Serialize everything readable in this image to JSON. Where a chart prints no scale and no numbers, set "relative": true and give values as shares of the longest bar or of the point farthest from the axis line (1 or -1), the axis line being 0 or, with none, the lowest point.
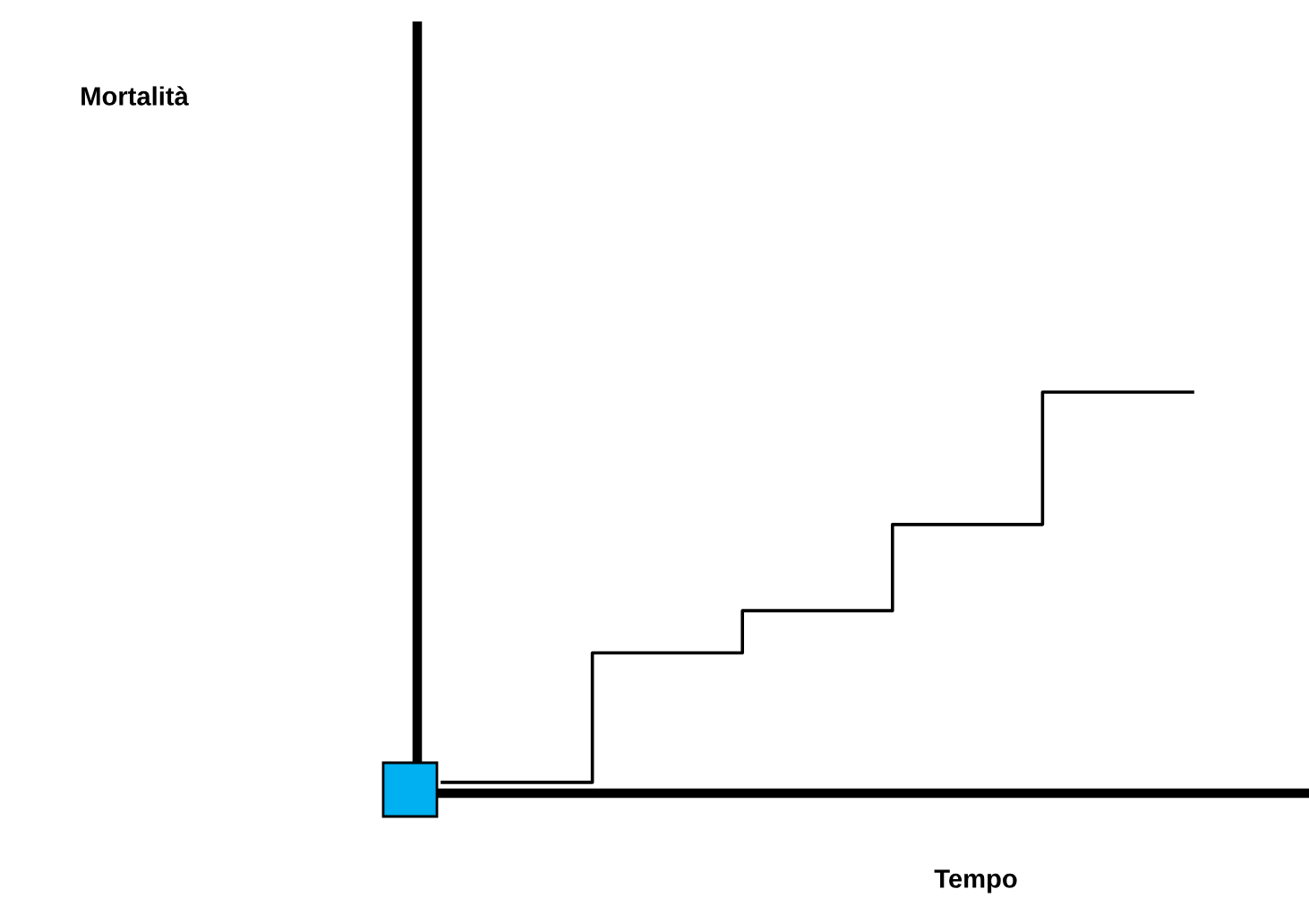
{
  "chart_data": {
    "type": "step",
    "relative": true,
    "xlabel": "Tempo",
    "annotations": [
      "Mortalità"
    ],
    "categories": [
      null,
      null,
      null,
      null,
      null,
      null
    ],
    "series": [
      {
        "color": "#000000",
        "values": [
          0.027,
          0.35,
          0.455,
          0.67,
          1.0,
          1.0
        ]
      }
    ],
    "legend": false,
    "marker": "none",
    "line_style": "solid"
  }
}
